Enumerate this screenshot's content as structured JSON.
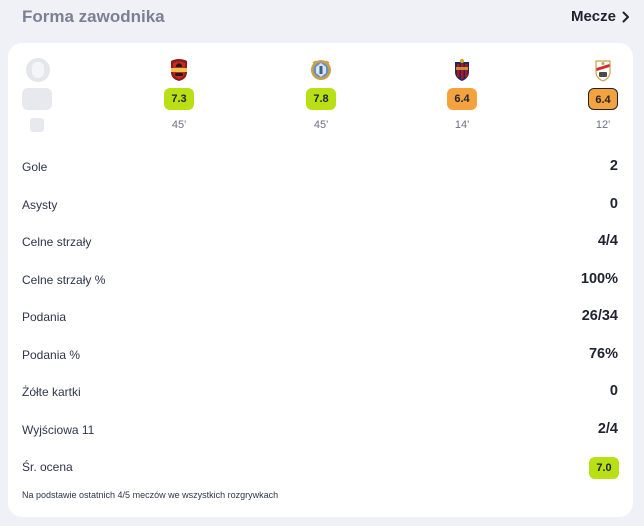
{
  "header": {
    "title": "Forma zawodnika",
    "matches_label": "Mecze"
  },
  "matches": [
    {
      "crest": "club-crest-red-icon",
      "rating": "7.3",
      "rating_color": "#b8e015",
      "minutes": "45'"
    },
    {
      "crest": "club-crest-blue-gold-icon",
      "rating": "7.8",
      "rating_color": "#b8e015",
      "minutes": "45'"
    },
    {
      "crest": "levante-crest-icon",
      "rating": "6.4",
      "rating_color": "#f3a23e",
      "minutes": "14'"
    },
    {
      "crest": "rayo-crest-icon",
      "rating": "6.4",
      "rating_color": "#f3a23e",
      "minutes": "12'"
    }
  ],
  "stats": [
    {
      "label": "Gole",
      "value": "2"
    },
    {
      "label": "Asysty",
      "value": "0"
    },
    {
      "label": "Celne strzały",
      "value": "4/4"
    },
    {
      "label": "Celne strzały %",
      "value": "100%"
    },
    {
      "label": "Podania",
      "value": "26/34"
    },
    {
      "label": "Podania %",
      "value": "76%"
    },
    {
      "label": "Żółte kartki",
      "value": "0"
    },
    {
      "label": "Wyjściowa 11",
      "value": "2/4"
    }
  ],
  "average": {
    "label": "Śr. ocena",
    "value": "7.0",
    "color": "#b8e015"
  },
  "footnote": "Na podstawie ostatnich 4/5 meczów we wszystkich rozgrywkach"
}
